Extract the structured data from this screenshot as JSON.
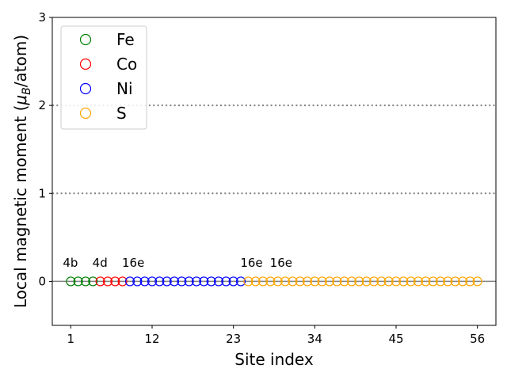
{
  "chart_data": {
    "type": "scatter",
    "xlabel": "Site index",
    "ylabel_main": "Local magnetic moment (",
    "ylabel_mu": "μ",
    "ylabel_sub": "B",
    "ylabel_tail": "/atom)",
    "xlim": [
      -1.5,
      58.5
    ],
    "ylim": [
      -0.5,
      3
    ],
    "xticks": [
      1,
      12,
      23,
      34,
      45,
      56
    ],
    "yticks": [
      0,
      1,
      2,
      3
    ],
    "reference_lines": [
      {
        "y": 0,
        "style": "solid",
        "color": "#808080"
      },
      {
        "y": 1,
        "style": "dotted",
        "color": "#808080"
      },
      {
        "y": 2,
        "style": "dotted",
        "color": "#808080"
      }
    ],
    "marker": "hollow-circle",
    "legend_position": "upper-left",
    "series": [
      {
        "name": "Fe",
        "color": "#008000",
        "x": [
          1,
          2,
          3,
          4
        ],
        "y": [
          0,
          0,
          0,
          0
        ]
      },
      {
        "name": "Co",
        "color": "#ff0000",
        "x": [
          5,
          6,
          7,
          8
        ],
        "y": [
          0,
          0,
          0,
          0
        ]
      },
      {
        "name": "Ni",
        "color": "#0000ff",
        "x": [
          9,
          10,
          11,
          12,
          13,
          14,
          15,
          16,
          17,
          18,
          19,
          20,
          21,
          22,
          23,
          24
        ],
        "y": [
          0,
          0,
          0,
          0,
          0,
          0,
          0,
          0,
          0,
          0,
          0,
          0,
          0,
          0,
          0,
          0
        ]
      },
      {
        "name": "S",
        "color": "#ffa500",
        "x": [
          25,
          26,
          27,
          28,
          29,
          30,
          31,
          32,
          33,
          34,
          35,
          36,
          37,
          38,
          39,
          40,
          41,
          42,
          43,
          44,
          45,
          46,
          47,
          48,
          49,
          50,
          51,
          52,
          53,
          54,
          55,
          56
        ],
        "y": [
          0,
          0,
          0,
          0,
          0,
          0,
          0,
          0,
          0,
          0,
          0,
          0,
          0,
          0,
          0,
          0,
          0,
          0,
          0,
          0,
          0,
          0,
          0,
          0,
          0,
          0,
          0,
          0,
          0,
          0,
          0,
          0
        ]
      }
    ],
    "annotations": [
      {
        "text": "4b",
        "x": 1,
        "y": 0.2
      },
      {
        "text": "4d",
        "x": 5,
        "y": 0.2
      },
      {
        "text": "16e",
        "x": 9,
        "y": 0.2
      },
      {
        "text": "16e",
        "x": 25,
        "y": 0.2
      },
      {
        "text": "16e",
        "x": 29,
        "y": 0.2
      }
    ]
  }
}
